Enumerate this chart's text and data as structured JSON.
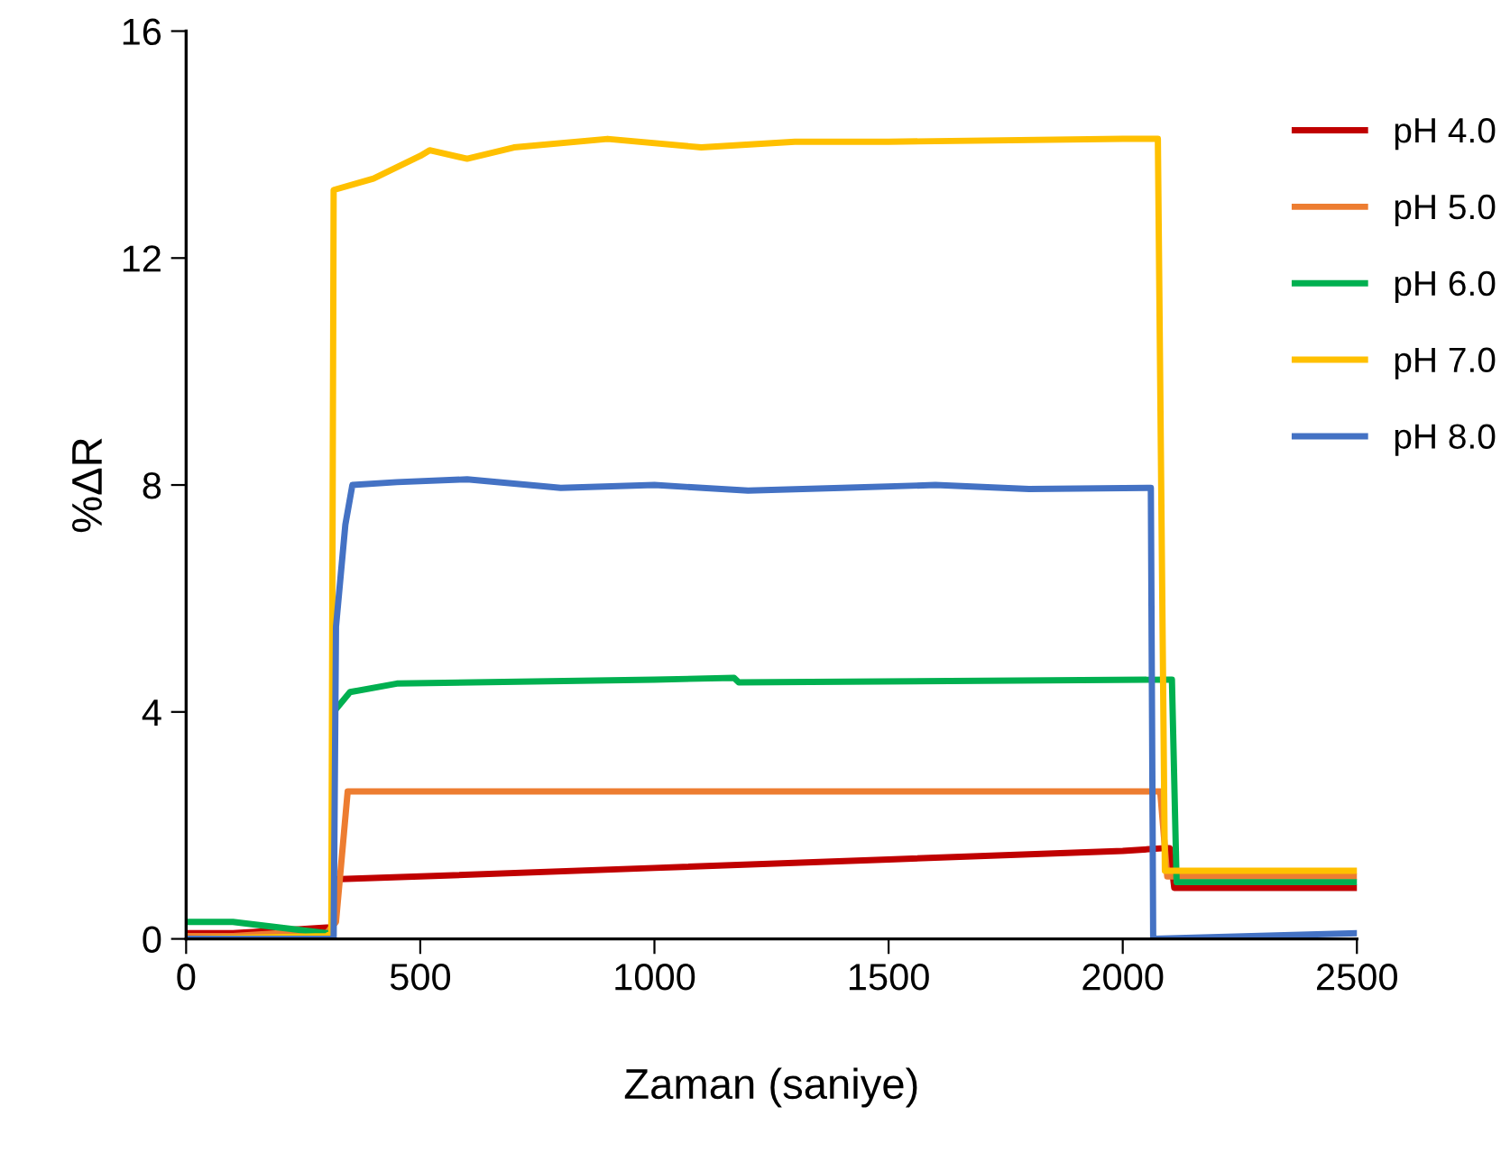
{
  "chart_data": {
    "type": "line",
    "xlabel": "Zaman (saniye)",
    "ylabel": "%ΔR",
    "xlim": [
      0,
      2500
    ],
    "ylim": [
      0,
      16
    ],
    "xticks": [
      0,
      500,
      1000,
      1500,
      2000,
      2500
    ],
    "yticks": [
      0,
      4,
      8,
      12,
      16
    ],
    "grid": false,
    "legend": "right",
    "marker": "none",
    "line_style": "solid",
    "series": [
      {
        "name": "pH 4.0",
        "color": "#c00000",
        "x": [
          0,
          100,
          200,
          300,
          310,
          315,
          500,
          1000,
          1500,
          2000,
          2090,
          2100,
          2110,
          2500
        ],
        "values": [
          0.1,
          0.1,
          0.15,
          0.2,
          0.2,
          1.05,
          1.1,
          1.25,
          1.4,
          1.55,
          1.6,
          1.6,
          0.9,
          0.9
        ]
      },
      {
        "name": "pH 5.0",
        "color": "#ed7d31",
        "x": [
          0,
          100,
          200,
          300,
          320,
          345,
          1000,
          1500,
          2000,
          2080,
          2095,
          2500
        ],
        "values": [
          0.05,
          0.05,
          0.1,
          0.1,
          0.3,
          2.6,
          2.6,
          2.6,
          2.6,
          2.6,
          1.1,
          1.1
        ]
      },
      {
        "name": "pH 6.0",
        "color": "#00b050",
        "x": [
          0,
          100,
          200,
          300,
          312,
          315,
          350,
          450,
          1000,
          1170,
          1180,
          2100,
          2105,
          2115,
          2500
        ],
        "values": [
          0.3,
          0.3,
          0.2,
          0.1,
          0.1,
          4.0,
          4.35,
          4.5,
          4.57,
          4.6,
          4.52,
          4.57,
          4.57,
          1.0,
          1.0
        ]
      },
      {
        "name": "pH 7.0",
        "color": "#ffc000",
        "x": [
          0,
          300,
          310,
          315,
          400,
          500,
          520,
          600,
          700,
          900,
          1100,
          1300,
          1500,
          2000,
          2075,
          2090,
          2500
        ],
        "values": [
          0.0,
          0.05,
          0.1,
          13.2,
          13.4,
          13.8,
          13.9,
          13.75,
          13.95,
          14.1,
          13.95,
          14.05,
          14.05,
          14.1,
          14.1,
          1.2,
          1.2
        ]
      },
      {
        "name": "pH 8.0",
        "color": "#4472c4",
        "x": [
          0,
          300,
          315,
          320,
          340,
          355,
          450,
          600,
          800,
          1000,
          1200,
          1400,
          1600,
          1800,
          2060,
          2065,
          2500
        ],
        "values": [
          0.0,
          0.0,
          0.0,
          5.5,
          7.3,
          8.0,
          8.05,
          8.1,
          7.95,
          8.0,
          7.9,
          7.95,
          8.0,
          7.93,
          7.95,
          0.0,
          0.1
        ]
      }
    ]
  }
}
